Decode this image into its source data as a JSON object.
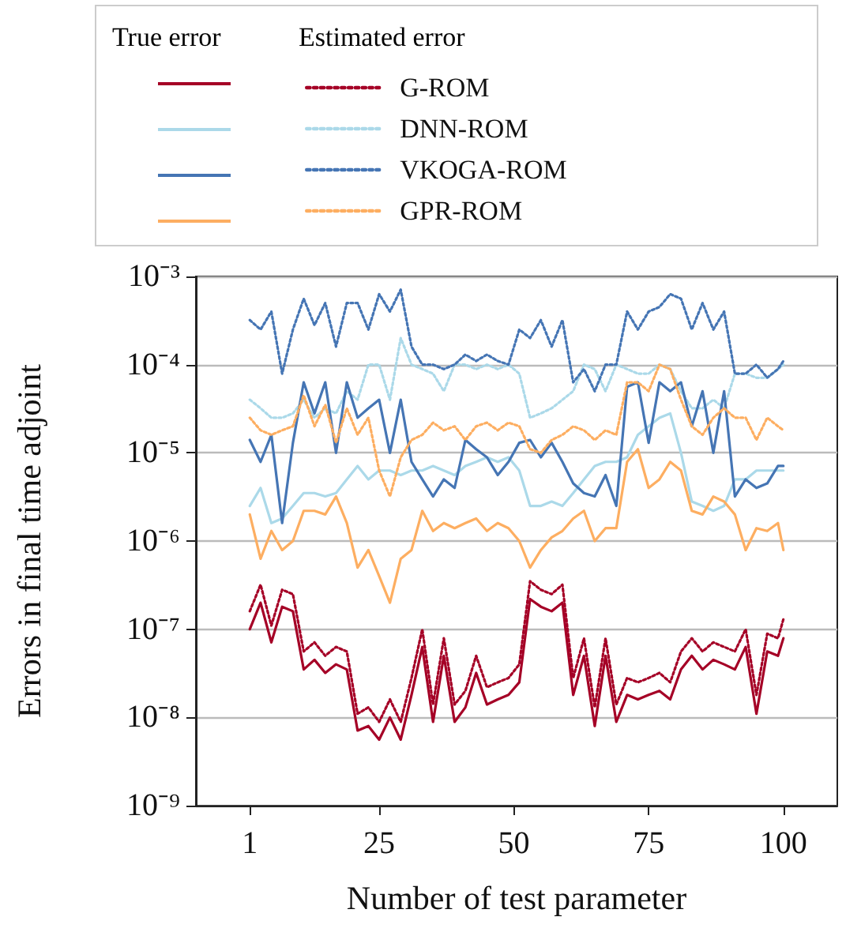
{
  "chart_data": {
    "type": "line",
    "xlabel": "Number of test parameter",
    "ylabel": "Errors in final time adjoint",
    "annotations": [
      "True error",
      "Estimated error"
    ],
    "log": "y",
    "grid": "y",
    "legend": "top",
    "marker": "none",
    "xlim": [
      -9,
      110
    ],
    "xticks": [
      1,
      25,
      50,
      75,
      100
    ],
    "ylim": [
      1e-09,
      0.001
    ],
    "yticks": [
      {
        "value": 1e-09,
        "label": "10⁻⁹"
      },
      {
        "value": 1e-08,
        "label": "10⁻⁸"
      },
      {
        "value": 1e-07,
        "label": "10⁻⁷"
      },
      {
        "value": 1e-06,
        "label": "10⁻⁶"
      },
      {
        "value": 1e-05,
        "label": "10⁻⁵"
      },
      {
        "value": 0.0001,
        "label": "10⁻⁴"
      },
      {
        "value": 0.001,
        "label": "10⁻³"
      }
    ],
    "x": [
      1,
      3,
      5,
      7,
      9,
      11,
      13,
      15,
      17,
      19,
      21,
      23,
      25,
      27,
      29,
      31,
      33,
      35,
      37,
      39,
      41,
      43,
      45,
      47,
      49,
      51,
      53,
      55,
      57,
      59,
      61,
      63,
      65,
      67,
      69,
      71,
      73,
      75,
      77,
      79,
      81,
      83,
      85,
      87,
      89,
      91,
      93,
      95,
      97,
      99,
      100
    ],
    "series": [
      {
        "color": "#a50026",
        "line_style": "solid",
        "values": [
          1e-07,
          2e-07,
          7.1e-08,
          1.8e-07,
          1.6e-07,
          3.5e-08,
          4.5e-08,
          3.2e-08,
          4e-08,
          3.5e-08,
          7.1e-09,
          8e-09,
          5.6e-09,
          1e-08,
          5.6e-09,
          1.8e-08,
          6.3e-08,
          8.9e-09,
          5e-08,
          8.9e-09,
          1.3e-08,
          3.2e-08,
          1.4e-08,
          1.6e-08,
          1.8e-08,
          2.5e-08,
          2.2e-07,
          1.8e-07,
          1.6e-07,
          2e-07,
          1.8e-08,
          5e-08,
          8e-09,
          5e-08,
          8.9e-09,
          1.8e-08,
          1.6e-08,
          1.8e-08,
          2e-08,
          1.6e-08,
          3.5e-08,
          5e-08,
          3.5e-08,
          4.5e-08,
          4e-08,
          3.5e-08,
          6.3e-08,
          1.1e-08,
          5.6e-08,
          5e-08,
          7.9e-08
        ]
      },
      {
        "name": "G-ROM",
        "color": "#a50026",
        "line_style": "dotted",
        "values": [
          1.6e-07,
          3.2e-07,
          1.1e-07,
          2.8e-07,
          2.5e-07,
          5.6e-08,
          7.1e-08,
          5e-08,
          6.3e-08,
          5.6e-08,
          1.1e-08,
          1.3e-08,
          8.9e-09,
          1.6e-08,
          8.9e-09,
          2.8e-08,
          1e-07,
          1.4e-08,
          7.9e-08,
          1.4e-08,
          2e-08,
          5e-08,
          2.2e-08,
          2.5e-08,
          2.8e-08,
          4e-08,
          3.5e-07,
          2.8e-07,
          2.5e-07,
          3.2e-07,
          2.8e-08,
          7.9e-08,
          1.3e-08,
          7.9e-08,
          1.4e-08,
          2.8e-08,
          2.5e-08,
          2.8e-08,
          3.2e-08,
          2.5e-08,
          5.6e-08,
          7.9e-08,
          5.6e-08,
          7.1e-08,
          6.3e-08,
          5.6e-08,
          1e-07,
          1.8e-08,
          8.9e-08,
          7.9e-08,
          1.3e-07
        ]
      },
      {
        "color": "#abd9e9",
        "line_style": "solid",
        "values": [
          2.5e-06,
          4e-06,
          1.6e-06,
          1.8e-06,
          2.5e-06,
          3.5e-06,
          3.5e-06,
          3.2e-06,
          3.5e-06,
          5e-06,
          7.1e-06,
          5e-06,
          6.3e-06,
          6.3e-06,
          5.6e-06,
          6.3e-06,
          6.3e-06,
          7.1e-06,
          6.3e-06,
          5.6e-06,
          7.1e-06,
          7.9e-06,
          8.9e-06,
          7.9e-06,
          8.9e-06,
          6.3e-06,
          2.5e-06,
          2.5e-06,
          2.8e-06,
          2.5e-06,
          3.5e-06,
          5e-06,
          7.1e-06,
          7.9e-06,
          7.9e-06,
          8.9e-06,
          1.6e-05,
          2e-05,
          2.5e-05,
          2.8e-05,
          1e-05,
          2.8e-06,
          2.5e-06,
          2.2e-06,
          2.5e-06,
          5e-06,
          5e-06,
          6.3e-06,
          6.3e-06,
          6.3e-06,
          6.3e-06
        ]
      },
      {
        "name": "DNN-ROM",
        "color": "#abd9e9",
        "line_style": "dotted",
        "values": [
          4e-05,
          3.2e-05,
          2.5e-05,
          2.5e-05,
          2.8e-05,
          4e-05,
          2.5e-05,
          3.2e-05,
          2.8e-05,
          5e-05,
          4e-05,
          0.0001,
          0.0001,
          4e-05,
          0.0002,
          0.0001,
          8.9e-05,
          7.9e-05,
          5e-05,
          0.0001,
          0.0001,
          8.9e-05,
          0.0001,
          8.9e-05,
          0.0001,
          7.9e-05,
          2.5e-05,
          2.8e-05,
          3.2e-05,
          4e-05,
          5e-05,
          0.0001,
          8.9e-05,
          5e-05,
          0.0001,
          8.9e-05,
          7.9e-05,
          7.9e-05,
          0.0001,
          8.9e-05,
          5e-05,
          3.2e-05,
          3.2e-05,
          4e-05,
          3.2e-05,
          7.9e-05,
          7.9e-05,
          7.1e-05,
          7.1e-05,
          8.9e-05,
          0.0001
        ]
      },
      {
        "color": "#4575b4",
        "line_style": "solid",
        "values": [
          1.4e-05,
          7.9e-06,
          1.6e-05,
          1.6e-06,
          1.3e-05,
          6.3e-05,
          2.8e-05,
          6.3e-05,
          1e-05,
          6.3e-05,
          2.5e-05,
          3.2e-05,
          4e-05,
          1e-05,
          4e-05,
          7.9e-06,
          5e-06,
          3.2e-06,
          5e-06,
          4e-06,
          1.4e-05,
          1.1e-05,
          8.9e-06,
          5.6e-06,
          7.9e-06,
          1.3e-05,
          1.4e-05,
          8.9e-06,
          1.3e-05,
          7.9e-06,
          4.5e-06,
          3.5e-06,
          3.2e-06,
          5.6e-06,
          2.5e-06,
          5.6e-05,
          6.3e-05,
          1.3e-05,
          6.3e-05,
          5e-05,
          6.3e-05,
          2e-05,
          5e-05,
          1e-05,
          5e-05,
          3.2e-06,
          5e-06,
          4e-06,
          4.5e-06,
          7.1e-06,
          7.1e-06
        ]
      },
      {
        "name": "VKOGA-ROM",
        "color": "#4575b4",
        "line_style": "dotted",
        "values": [
          0.00032,
          0.00025,
          0.0004,
          7.9e-05,
          0.00025,
          0.00056,
          0.00028,
          0.0005,
          0.00016,
          0.0005,
          0.0005,
          0.00025,
          0.00063,
          0.0004,
          0.00071,
          0.00016,
          0.0001,
          0.0001,
          8.9e-05,
          0.0001,
          0.00013,
          0.00011,
          0.00013,
          0.00011,
          0.0001,
          0.00025,
          0.0002,
          0.00032,
          0.00016,
          0.00032,
          6.3e-05,
          8.9e-05,
          5e-05,
          0.0001,
          0.0001,
          0.0004,
          0.00025,
          0.0004,
          0.00045,
          0.00063,
          0.00056,
          0.00025,
          0.0005,
          0.00025,
          0.0004,
          7.9e-05,
          7.9e-05,
          0.0001,
          7.1e-05,
          8.9e-05,
          0.00011
        ]
      },
      {
        "color": "#fdae61",
        "line_style": "solid",
        "values": [
          2e-06,
          6.3e-07,
          1.3e-06,
          7.9e-07,
          1e-06,
          2.2e-06,
          2.2e-06,
          2e-06,
          3.2e-06,
          1.6e-06,
          5e-07,
          7.9e-07,
          4e-07,
          2e-07,
          6.3e-07,
          7.9e-07,
          2.2e-06,
          1.3e-06,
          1.6e-06,
          1.4e-06,
          1.6e-06,
          1.8e-06,
          1.3e-06,
          1.6e-06,
          1.4e-06,
          1e-06,
          5e-07,
          7.9e-07,
          1.1e-06,
          1.3e-06,
          1.8e-06,
          2.2e-06,
          1e-06,
          1.4e-06,
          1.4e-06,
          7.9e-06,
          1.1e-05,
          4e-06,
          5e-06,
          7.9e-06,
          6.3e-06,
          2.2e-06,
          2e-06,
          3.2e-06,
          2.8e-06,
          2e-06,
          7.9e-07,
          1.4e-06,
          1.3e-06,
          1.6e-06,
          7.9e-07
        ]
      },
      {
        "name": "GPR-ROM",
        "color": "#fdae61",
        "line_style": "dotted",
        "values": [
          2.5e-05,
          1.8e-05,
          1.6e-05,
          1.8e-05,
          2e-05,
          4.5e-05,
          2e-05,
          3.5e-05,
          1.3e-05,
          3.2e-05,
          1.6e-05,
          2.5e-05,
          6.3e-06,
          3.2e-06,
          8.9e-06,
          1.4e-05,
          1.6e-05,
          2.2e-05,
          1.8e-05,
          2e-05,
          1.4e-05,
          2e-05,
          2.2e-05,
          1.8e-05,
          2.2e-05,
          2e-05,
          1.1e-05,
          1e-05,
          1.4e-05,
          1.6e-05,
          2e-05,
          1.8e-05,
          1.4e-05,
          1.8e-05,
          1.6e-05,
          6.3e-05,
          6.3e-05,
          5e-05,
          0.0001,
          8.9e-05,
          4e-05,
          2e-05,
          1.6e-05,
          2.5e-05,
          3.2e-05,
          2.5e-05,
          2.5e-05,
          1.4e-05,
          2.5e-05,
          2e-05,
          1.8e-05
        ]
      }
    ]
  }
}
